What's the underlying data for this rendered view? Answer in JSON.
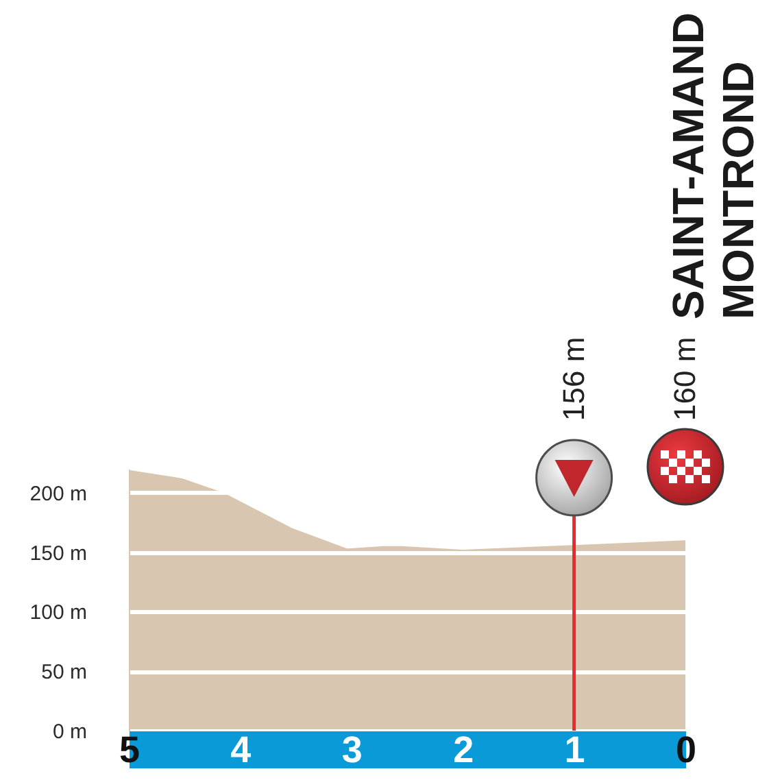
{
  "chart_data": {
    "type": "area",
    "title": "SAINT-AMAND MONTROND",
    "x": [
      5,
      4.52,
      4.15,
      3.53,
      3.04,
      2.71,
      2.55,
      2,
      1,
      0
    ],
    "values": [
      219,
      212,
      200,
      170,
      153,
      155,
      155,
      152,
      156,
      160
    ],
    "color": "#d9c6b0",
    "xlim": [
      5,
      0
    ],
    "xticks": [
      5,
      4,
      3,
      2,
      1,
      0
    ],
    "ylim": [
      0,
      220
    ],
    "yticks": [
      {
        "value": 0,
        "label": "0 m"
      },
      {
        "value": 50,
        "label": "50 m"
      },
      {
        "value": 100,
        "label": "100 m"
      },
      {
        "value": 150,
        "label": "150 m"
      },
      {
        "value": 200,
        "label": "200 m"
      }
    ],
    "grid": "y",
    "ref_lines": [
      {
        "axis": "x",
        "value": 1,
        "label": "156 m",
        "color": "#e42b2f"
      }
    ],
    "annotations": [
      "160 m"
    ]
  }
}
